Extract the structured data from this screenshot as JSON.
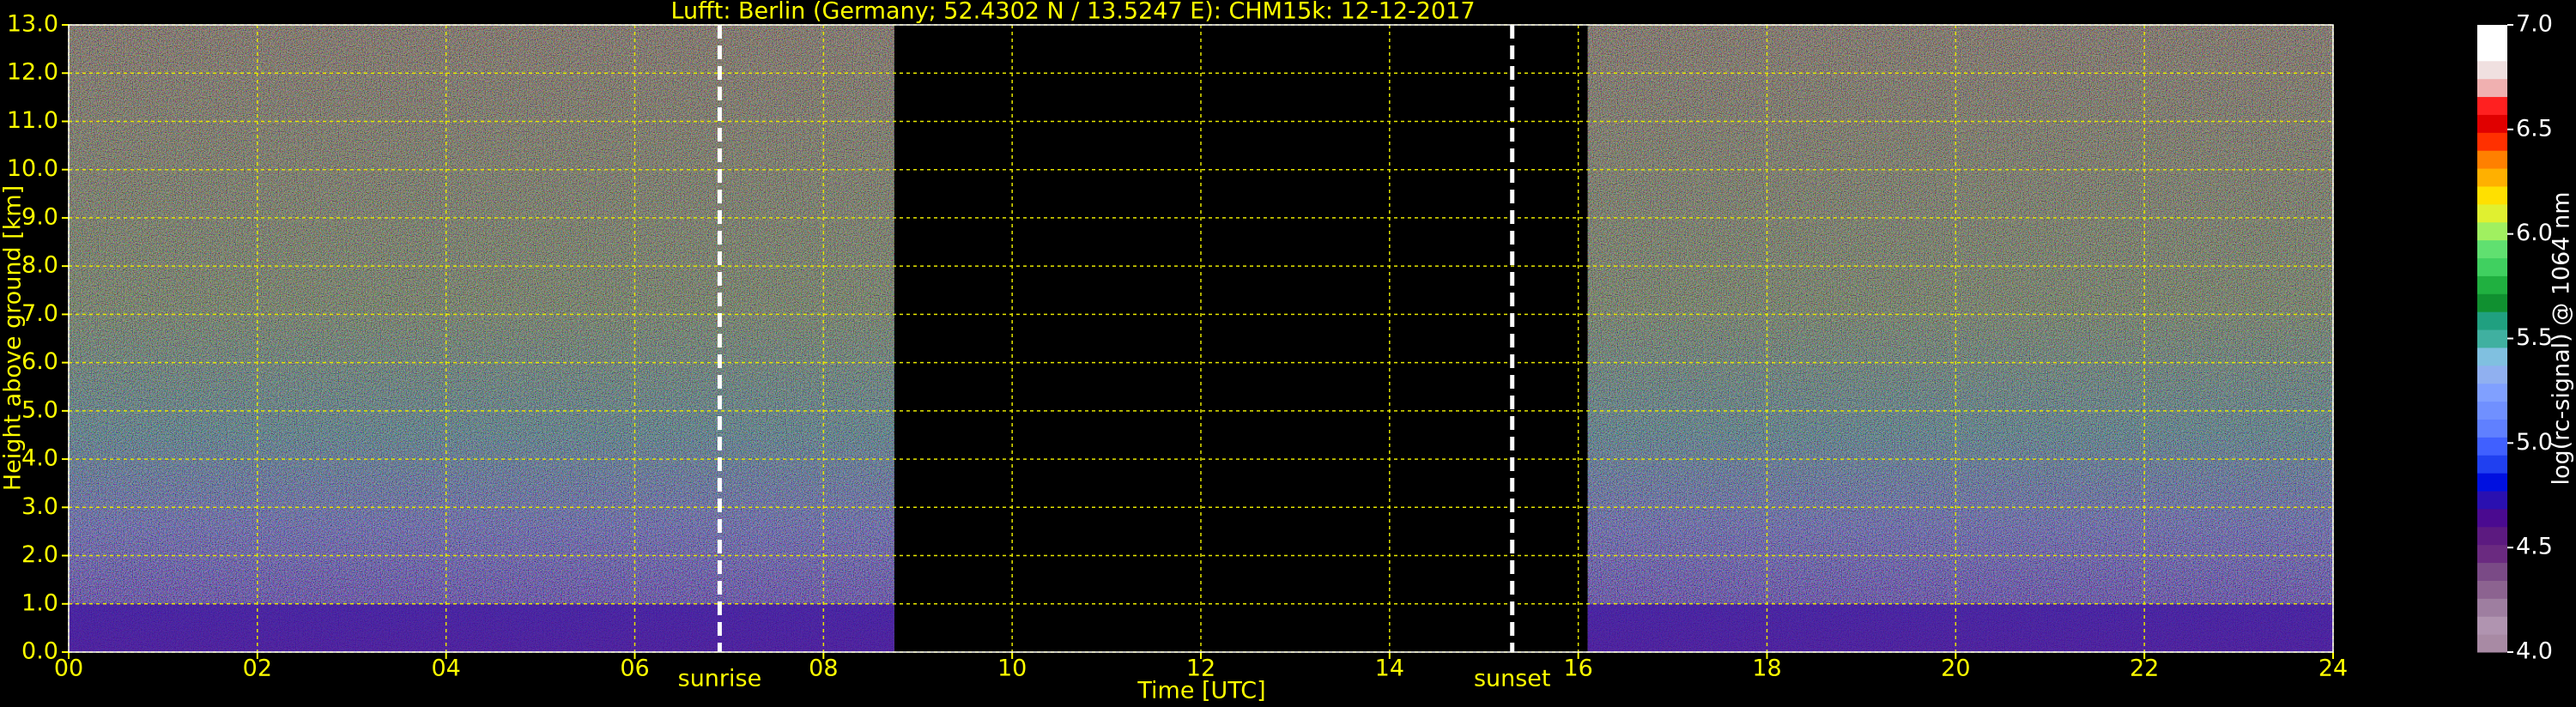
{
  "chart_data": {
    "type": "heatmap",
    "title": "Lufft: Berlin (Germany; 52.4302 N / 13.5247 E):    CHM15k: 12-12-2017",
    "xlabel": "Time [UTC]",
    "ylabel": "Height above ground [km]",
    "xlim": [
      0,
      24
    ],
    "xticks": [
      {
        "value": 0,
        "label": "00"
      },
      {
        "value": 2,
        "label": "02"
      },
      {
        "value": 4,
        "label": "04"
      },
      {
        "value": 6,
        "label": "06"
      },
      {
        "value": 8,
        "label": "08"
      },
      10,
      12,
      14,
      16,
      18,
      20,
      22,
      24
    ],
    "ylim": [
      0,
      13
    ],
    "yticks": [
      {
        "value": 0,
        "label": "0.0"
      },
      {
        "value": 1,
        "label": "1.0"
      },
      {
        "value": 2,
        "label": "2.0"
      },
      {
        "value": 3,
        "label": "3.0"
      },
      {
        "value": 4,
        "label": "4.0"
      },
      {
        "value": 5,
        "label": "5.0"
      },
      {
        "value": 6,
        "label": "6.0"
      },
      {
        "value": 7,
        "label": "7.0"
      },
      {
        "value": 8,
        "label": "8.0"
      },
      {
        "value": 9,
        "label": "9.0"
      },
      {
        "value": 10,
        "label": "10.0"
      },
      {
        "value": 11,
        "label": "11.0"
      },
      {
        "value": 12,
        "label": "12.0"
      },
      {
        "value": 13,
        "label": "13.0"
      }
    ],
    "grid": true,
    "grid_color": "#e6e600",
    "text_color": "#ffff00",
    "background": "#000000",
    "measurement_periods": [
      [
        0,
        8.75
      ],
      [
        16.1,
        24
      ]
    ],
    "annotations": [
      {
        "label": "sunrise",
        "x": 6.9
      },
      {
        "label": "sunset",
        "x": 15.3
      }
    ],
    "colorbar": {
      "label": "log(rc-signal) @ 1064 nm",
      "lim": [
        4,
        7
      ],
      "ticks": [
        {
          "value": 4,
          "label": "4.0"
        },
        {
          "value": 4.5,
          "label": "4.5"
        },
        {
          "value": 5,
          "label": "5.0"
        },
        {
          "value": 5.5,
          "label": "5.5"
        },
        {
          "value": 6,
          "label": "6.0"
        },
        {
          "value": 6.5,
          "label": "6.5"
        },
        {
          "value": 7,
          "label": "7.0"
        }
      ],
      "colors": [
        "#a88aa4",
        "#b094b0",
        "#9e7ea0",
        "#8c6390",
        "#7a4a86",
        "#6a2a80",
        "#5c1a80",
        "#4a0a90",
        "#2a10b0",
        "#0010e0",
        "#2040f0",
        "#4060ff",
        "#6080ff",
        "#7090ff",
        "#80a0ff",
        "#90b0f0",
        "#80c0e0",
        "#40b0a0",
        "#20a080",
        "#109030",
        "#20b040",
        "#40d060",
        "#60e070",
        "#a0f060",
        "#e0f030",
        "#ffe000",
        "#ffb000",
        "#ff8000",
        "#ff3000",
        "#e00000",
        "#ff2020",
        "#f0b0b0",
        "#f0e0e0",
        "#ffffff",
        "#ffffff"
      ]
    }
  }
}
